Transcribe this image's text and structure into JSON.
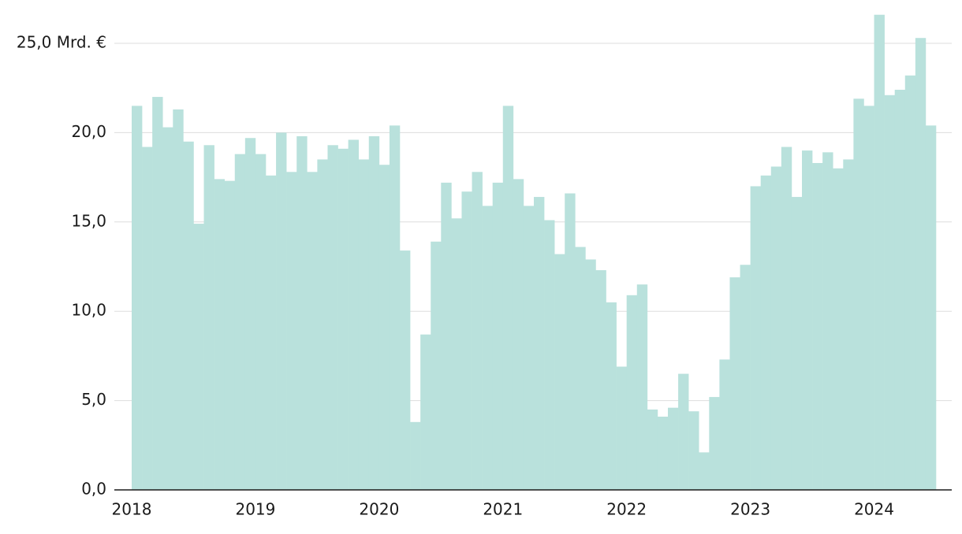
{
  "chart_data": {
    "type": "bar",
    "categories": [
      "2018",
      null,
      null,
      null,
      null,
      null,
      null,
      null,
      null,
      null,
      null,
      null,
      "2019",
      null,
      null,
      null,
      null,
      null,
      null,
      null,
      null,
      null,
      null,
      null,
      "2020",
      null,
      null,
      null,
      null,
      null,
      null,
      null,
      null,
      null,
      null,
      null,
      "2021",
      null,
      null,
      null,
      null,
      null,
      null,
      null,
      null,
      null,
      null,
      null,
      "2022",
      null,
      null,
      null,
      null,
      null,
      null,
      null,
      null,
      null,
      null,
      null,
      "2023",
      null,
      null,
      null,
      null,
      null,
      null,
      null,
      null,
      null,
      null,
      null,
      "2024",
      null,
      null,
      null,
      null,
      null
    ],
    "values": [
      21.5,
      19.2,
      22.0,
      20.3,
      21.3,
      19.5,
      14.9,
      19.3,
      17.4,
      17.3,
      18.8,
      19.7,
      18.8,
      17.6,
      20.0,
      17.8,
      19.8,
      17.8,
      18.5,
      19.3,
      19.1,
      19.6,
      18.5,
      19.8,
      18.2,
      20.4,
      13.4,
      3.8,
      8.7,
      13.9,
      17.2,
      15.2,
      16.7,
      17.8,
      15.9,
      17.2,
      21.5,
      17.4,
      15.9,
      16.4,
      15.1,
      13.2,
      16.6,
      13.6,
      12.9,
      12.3,
      10.5,
      6.9,
      10.9,
      11.5,
      4.5,
      4.1,
      4.6,
      6.5,
      4.4,
      2.1,
      5.2,
      7.3,
      11.9,
      12.6,
      17.0,
      17.6,
      18.1,
      19.2,
      16.4,
      19.0,
      18.3,
      18.9,
      18.0,
      18.5,
      21.9,
      21.5,
      26.6,
      22.1,
      22.4,
      23.2,
      25.3,
      20.4
    ],
    "color": "#b9e1dc",
    "ylim": [
      0,
      26.5
    ],
    "yticks": [
      {
        "value": 0,
        "label": "0,0"
      },
      {
        "value": 5,
        "label": "5,0"
      },
      {
        "value": 10,
        "label": "10,0"
      },
      {
        "value": 15,
        "label": "15,0"
      },
      {
        "value": 20,
        "label": "20,0"
      },
      {
        "value": 25,
        "label": "25,0 Mrd. €"
      }
    ],
    "grid": true
  }
}
